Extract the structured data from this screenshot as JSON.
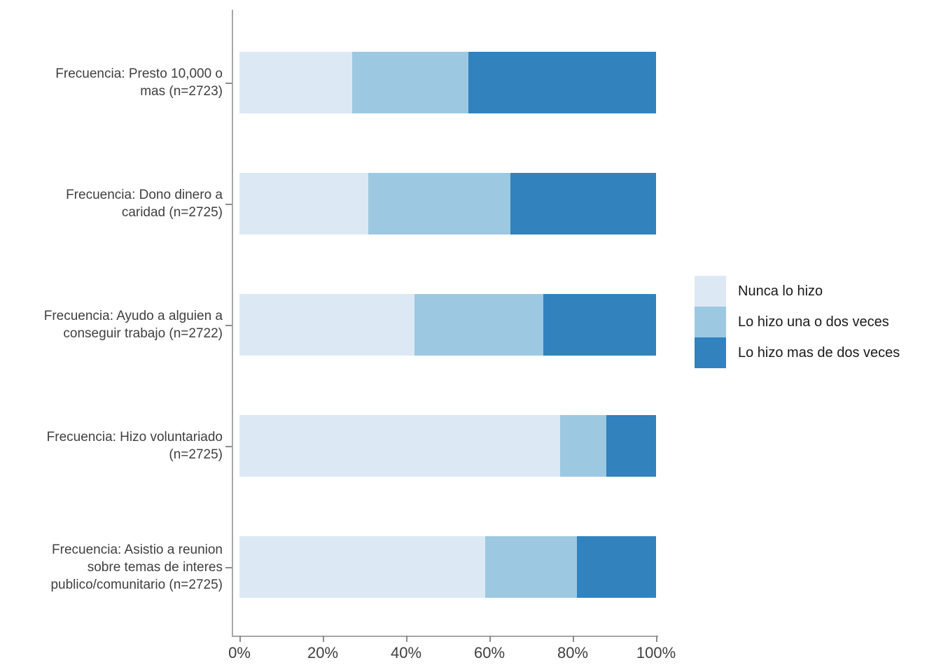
{
  "chart_data": {
    "type": "bar",
    "orientation": "horizontal",
    "stacked": true,
    "title": "",
    "xlabel": "",
    "ylabel": "",
    "xlim": [
      0,
      100
    ],
    "grid": false,
    "legend_position": "right",
    "axis_color": "#a6a6a6",
    "tick_label_color": "#404040",
    "categories": [
      "Frecuencia: Presto 10,000 o mas (n=2723)",
      "Frecuencia: Dono dinero a caridad (n=2725)",
      "Frecuencia: Ayudo a alguien a conseguir trabajo (n=2722)",
      "Frecuencia: Hizo voluntariado (n=2725)",
      "Frecuencia: Asistio a reunion sobre temas de interes publico/comunitario (n=2725)"
    ],
    "category_label_lines": [
      [
        "Frecuencia: Presto 10,000 o",
        "mas (n=2723)"
      ],
      [
        "Frecuencia: Dono dinero a",
        "caridad (n=2725)"
      ],
      [
        "Frecuencia: Ayudo a alguien a",
        "conseguir trabajo (n=2722)"
      ],
      [
        "Frecuencia: Hizo voluntariado",
        "(n=2725)"
      ],
      [
        "Frecuencia: Asistio a reunion",
        "sobre temas de interes",
        "publico/comunitario (n=2725)"
      ]
    ],
    "series": [
      {
        "name": "Nunca lo hizo",
        "color": "#dce9f5",
        "values": [
          27,
          31,
          42,
          77,
          59
        ]
      },
      {
        "name": "Lo hizo una o dos veces",
        "color": "#9dc8e1",
        "values": [
          28,
          34,
          31,
          11,
          22
        ]
      },
      {
        "name": "Lo hizo mas de dos veces",
        "color": "#3182bd",
        "values": [
          45,
          35,
          27,
          12,
          19
        ]
      }
    ],
    "x_ticks": [
      "0%",
      "20%",
      "40%",
      "60%",
      "80%",
      "100%"
    ]
  }
}
